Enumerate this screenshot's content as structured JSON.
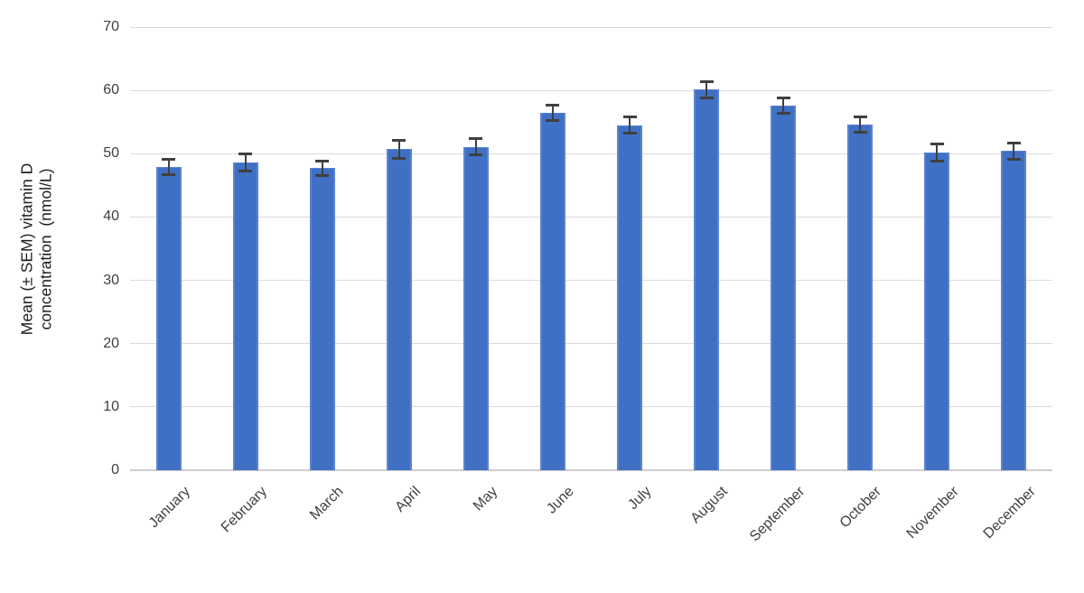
{
  "chart_data": {
    "type": "bar",
    "title": "",
    "ylabel_line1": "Mean (± SEM) vitamin D",
    "ylabel_line2": "concentration  (nmol/L)",
    "ylabel_full": "Mean (± SEM) vitamin D concentration (nmol/L)",
    "xlabel": "",
    "categories": [
      "January",
      "February",
      "March",
      "April",
      "May",
      "June",
      "July",
      "August",
      "September",
      "October",
      "November",
      "December"
    ],
    "series": [
      {
        "name": "Mean vitamin D concentration (nmol/L)",
        "values": [
          47.9,
          48.6,
          47.7,
          50.7,
          51.1,
          56.4,
          54.5,
          60.1,
          57.6,
          54.6,
          50.2,
          50.4
        ],
        "sem": [
          1.2,
          1.4,
          1.2,
          1.4,
          1.3,
          1.2,
          1.3,
          1.3,
          1.2,
          1.2,
          1.4,
          1.3
        ]
      }
    ],
    "ylim": [
      0,
      70
    ],
    "ytick_step": 10,
    "yticks": [
      0,
      10,
      20,
      30,
      40,
      50,
      60,
      70
    ],
    "grid": true,
    "legend": false,
    "x_label_rotation_deg": 45,
    "colors": {
      "bar_fill": "#4472C4",
      "bar_edge": "#5B83D1",
      "error_bar": "#404040",
      "gridline": "#DBDBDB",
      "axis_line": "#CFCDCD",
      "tick_label": "#404040",
      "axis_title": "#1F1F1F",
      "background": "#FFFFFF"
    }
  }
}
